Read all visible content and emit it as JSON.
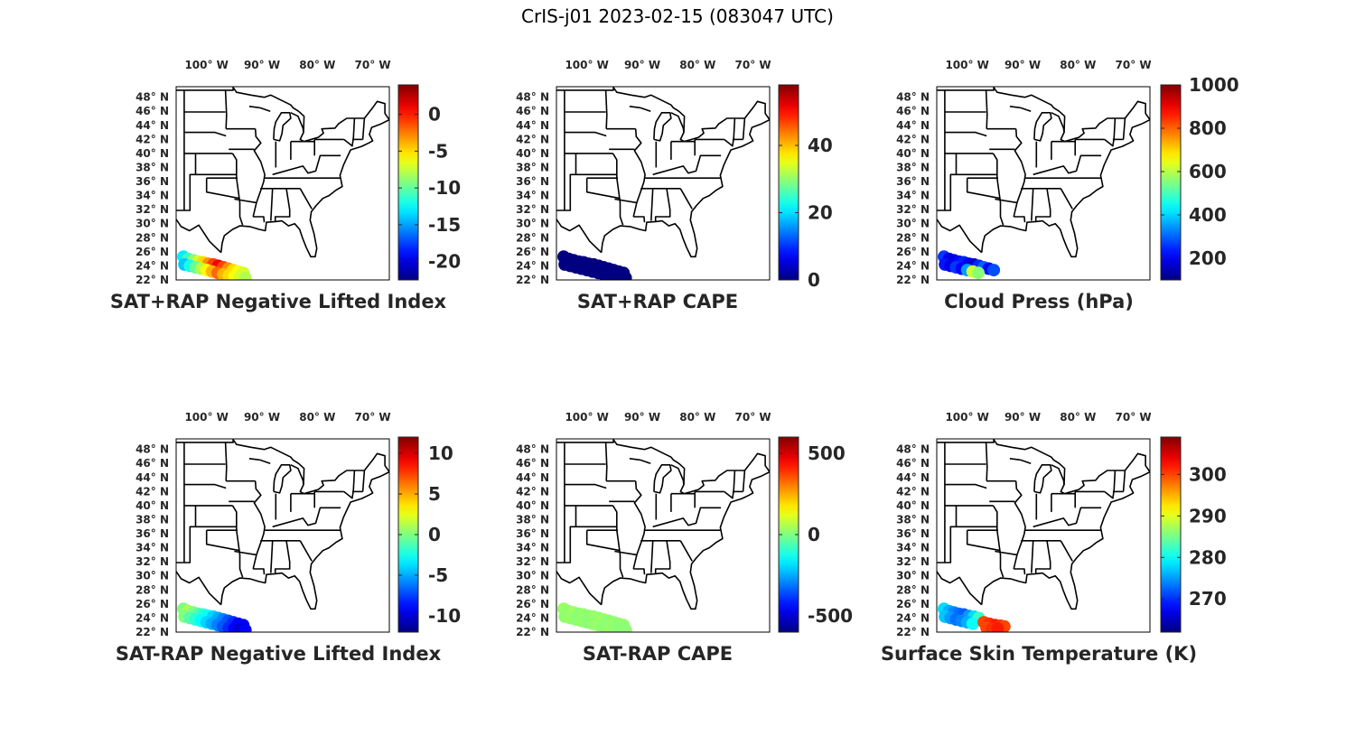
{
  "figure": {
    "title": "CrIS-j01 2023-02-15 (083047 UTC)"
  },
  "colors": {
    "map_lines": "#000000",
    "frame": "#262626",
    "text": "#262626",
    "colormap": "jet"
  },
  "chart_data": [
    {
      "type": "scatter",
      "title": "SAT+RAP Negative Lifted Index",
      "lon_ticks": [
        "100° W",
        "90° W",
        "80° W",
        "70° W"
      ],
      "lat_ticks": [
        "48° N",
        "46° N",
        "44° N",
        "42° N",
        "40° N",
        "38° N",
        "36° N",
        "34° N",
        "32° N",
        "30° N",
        "28° N",
        "26° N",
        "24° N",
        "22° N"
      ],
      "lon_range": [
        -105.5,
        -67
      ],
      "lat_range": [
        22,
        49.5
      ],
      "colorbar": {
        "range": [
          -22.5,
          4
        ],
        "ticks": [
          0,
          -5,
          -10,
          -15,
          -20
        ]
      },
      "points": [
        [
          -104.2,
          25.3,
          -13
        ],
        [
          -103.3,
          25.0,
          -11
        ],
        [
          -102.4,
          24.8,
          -9
        ],
        [
          -101.5,
          24.6,
          -7
        ],
        [
          -100.6,
          24.5,
          -5
        ],
        [
          -99.7,
          24.3,
          -3
        ],
        [
          -98.8,
          24.2,
          -1
        ],
        [
          -97.9,
          24.0,
          1
        ],
        [
          -97.0,
          23.8,
          -1
        ],
        [
          -96.1,
          23.6,
          -3
        ],
        [
          -95.2,
          23.4,
          -5
        ],
        [
          -94.3,
          23.2,
          -6
        ],
        [
          -93.4,
          23.0,
          -7
        ],
        [
          -104.0,
          24.2,
          -14
        ],
        [
          -103.0,
          24.0,
          -12
        ],
        [
          -102.0,
          23.8,
          -10
        ],
        [
          -101.0,
          23.6,
          -8
        ],
        [
          -100.0,
          23.4,
          -6
        ],
        [
          -99.0,
          23.2,
          -4
        ],
        [
          -98.0,
          23.0,
          -2
        ],
        [
          -97.0,
          22.8,
          -4
        ],
        [
          -96.0,
          22.6,
          -5
        ],
        [
          -95.0,
          22.5,
          -6
        ],
        [
          -94.0,
          22.4,
          -7
        ],
        [
          -93.0,
          22.3,
          -8
        ]
      ]
    },
    {
      "type": "scatter",
      "title": "SAT+RAP CAPE",
      "lon_ticks": [
        "100° W",
        "90° W",
        "80° W",
        "70° W"
      ],
      "lat_ticks": [
        "48° N",
        "46° N",
        "44° N",
        "42° N",
        "40° N",
        "38° N",
        "36° N",
        "34° N",
        "32° N",
        "30° N",
        "28° N",
        "26° N",
        "24° N",
        "22° N"
      ],
      "lon_range": [
        -105.5,
        -67
      ],
      "lat_range": [
        22,
        49.5
      ],
      "colorbar": {
        "range": [
          0,
          58
        ],
        "ticks": [
          40,
          20,
          0
        ]
      },
      "points": [
        [
          -104.2,
          25.3,
          0
        ],
        [
          -103.3,
          25.0,
          0
        ],
        [
          -102.4,
          24.8,
          0
        ],
        [
          -101.5,
          24.6,
          0
        ],
        [
          -100.6,
          24.5,
          0
        ],
        [
          -99.7,
          24.3,
          0
        ],
        [
          -98.8,
          24.2,
          0
        ],
        [
          -97.9,
          24.0,
          0
        ],
        [
          -97.0,
          23.8,
          0
        ],
        [
          -96.1,
          23.6,
          0
        ],
        [
          -95.2,
          23.4,
          0
        ],
        [
          -94.3,
          23.2,
          0
        ],
        [
          -93.4,
          23.0,
          0
        ],
        [
          -104.0,
          24.2,
          0
        ],
        [
          -103.0,
          24.0,
          0
        ],
        [
          -102.0,
          23.8,
          0
        ],
        [
          -101.0,
          23.6,
          0
        ],
        [
          -100.0,
          23.4,
          0
        ],
        [
          -99.0,
          23.2,
          0
        ],
        [
          -98.0,
          23.0,
          0
        ],
        [
          -97.0,
          22.8,
          0
        ],
        [
          -96.0,
          22.6,
          0
        ],
        [
          -95.0,
          22.5,
          0
        ],
        [
          -94.0,
          22.4,
          0
        ],
        [
          -93.0,
          22.3,
          0
        ]
      ]
    },
    {
      "type": "scatter",
      "title": "Cloud Press (hPa)",
      "lon_ticks": [
        "100° W",
        "90° W",
        "80° W",
        "70° W"
      ],
      "lat_ticks": [
        "48° N",
        "46° N",
        "44° N",
        "42° N",
        "40° N",
        "38° N",
        "36° N",
        "34° N",
        "32° N",
        "30° N",
        "28° N",
        "26° N",
        "24° N",
        "22° N"
      ],
      "lon_range": [
        -105.5,
        -67
      ],
      "lat_range": [
        22,
        49.5
      ],
      "colorbar": {
        "range": [
          100,
          1000
        ],
        "ticks": [
          1000,
          800,
          600,
          400,
          200
        ]
      },
      "points": [
        [
          -104.2,
          25.3,
          260
        ],
        [
          -103.3,
          25.0,
          200
        ],
        [
          -102.4,
          24.8,
          180
        ],
        [
          -101.5,
          24.6,
          220
        ],
        [
          -100.6,
          24.5,
          240
        ],
        [
          -99.7,
          24.3,
          200
        ],
        [
          -98.8,
          24.2,
          160
        ],
        [
          -97.9,
          24.0,
          250
        ],
        [
          -97.0,
          23.8,
          300
        ],
        [
          -96.1,
          23.6,
          220
        ],
        [
          -95.2,
          23.4,
          280
        ],
        [
          -104.0,
          24.2,
          230
        ],
        [
          -103.0,
          24.0,
          190
        ],
        [
          -102.0,
          23.8,
          260
        ],
        [
          -101.0,
          23.6,
          210
        ],
        [
          -100.0,
          23.4,
          350
        ],
        [
          -99.0,
          23.2,
          620
        ],
        [
          -98.0,
          23.0,
          560
        ]
      ]
    },
    {
      "type": "scatter",
      "title": "SAT-RAP Negative Lifted Index",
      "lon_ticks": [
        "100° W",
        "90° W",
        "80° W",
        "70° W"
      ],
      "lat_ticks": [
        "48° N",
        "46° N",
        "44° N",
        "42° N",
        "40° N",
        "38° N",
        "36° N",
        "34° N",
        "32° N",
        "30° N",
        "28° N",
        "26° N",
        "24° N",
        "22° N"
      ],
      "lon_range": [
        -105.5,
        -67
      ],
      "lat_range": [
        22,
        49.5
      ],
      "colorbar": {
        "range": [
          -12,
          12
        ],
        "ticks": [
          10,
          5,
          0,
          -5,
          -10
        ]
      },
      "points": [
        [
          -104.2,
          25.3,
          0
        ],
        [
          -103.3,
          25.0,
          1
        ],
        [
          -102.4,
          24.8,
          0
        ],
        [
          -101.5,
          24.6,
          -1
        ],
        [
          -100.6,
          24.5,
          -2
        ],
        [
          -99.7,
          24.3,
          -3
        ],
        [
          -98.8,
          24.2,
          -4
        ],
        [
          -97.9,
          24.0,
          -5
        ],
        [
          -97.0,
          23.8,
          -6
        ],
        [
          -96.1,
          23.6,
          -7
        ],
        [
          -95.2,
          23.4,
          -8
        ],
        [
          -94.3,
          23.2,
          -9
        ],
        [
          -93.4,
          23.0,
          -9
        ],
        [
          -104.0,
          24.2,
          0
        ],
        [
          -103.0,
          24.0,
          -1
        ],
        [
          -102.0,
          23.8,
          -2
        ],
        [
          -101.0,
          23.6,
          -3
        ],
        [
          -100.0,
          23.4,
          -4
        ],
        [
          -99.0,
          23.2,
          -5
        ],
        [
          -98.0,
          23.0,
          -6
        ],
        [
          -97.0,
          22.8,
          -7
        ],
        [
          -96.0,
          22.6,
          -8
        ],
        [
          -95.0,
          22.5,
          -9
        ],
        [
          -94.0,
          22.4,
          -10
        ],
        [
          -93.0,
          22.3,
          -9
        ]
      ]
    },
    {
      "type": "scatter",
      "title": "SAT-RAP CAPE",
      "lon_ticks": [
        "100° W",
        "90° W",
        "80° W",
        "70° W"
      ],
      "lat_ticks": [
        "48° N",
        "46° N",
        "44° N",
        "42° N",
        "40° N",
        "38° N",
        "36° N",
        "34° N",
        "32° N",
        "30° N",
        "28° N",
        "26° N",
        "24° N",
        "22° N"
      ],
      "lon_range": [
        -105.5,
        -67
      ],
      "lat_range": [
        22,
        49.5
      ],
      "colorbar": {
        "range": [
          -600,
          600
        ],
        "ticks": [
          500,
          0,
          -500
        ]
      },
      "points": [
        [
          -104.2,
          25.3,
          30
        ],
        [
          -103.3,
          25.0,
          20
        ],
        [
          -102.4,
          24.8,
          40
        ],
        [
          -101.5,
          24.6,
          10
        ],
        [
          -100.6,
          24.5,
          25
        ],
        [
          -99.7,
          24.3,
          15
        ],
        [
          -98.8,
          24.2,
          30
        ],
        [
          -97.9,
          24.0,
          20
        ],
        [
          -97.0,
          23.8,
          35
        ],
        [
          -96.1,
          23.6,
          10
        ],
        [
          -95.2,
          23.4,
          25
        ],
        [
          -94.3,
          23.2,
          15
        ],
        [
          -93.4,
          23.0,
          20
        ],
        [
          -104.0,
          24.2,
          20
        ],
        [
          -103.0,
          24.0,
          30
        ],
        [
          -102.0,
          23.8,
          15
        ],
        [
          -101.0,
          23.6,
          25
        ],
        [
          -100.0,
          23.4,
          10
        ],
        [
          -99.0,
          23.2,
          20
        ],
        [
          -98.0,
          23.0,
          30
        ],
        [
          -97.0,
          22.8,
          15
        ],
        [
          -96.0,
          22.6,
          25
        ],
        [
          -95.0,
          22.5,
          20
        ],
        [
          -94.0,
          22.4,
          10
        ],
        [
          -93.0,
          22.3,
          15
        ]
      ]
    },
    {
      "type": "scatter",
      "title": "Surface Skin Temperature (K)",
      "lon_ticks": [
        "100° W",
        "90° W",
        "80° W",
        "70° W"
      ],
      "lat_ticks": [
        "48° N",
        "46° N",
        "44° N",
        "42° N",
        "40° N",
        "38° N",
        "36° N",
        "34° N",
        "32° N",
        "30° N",
        "28° N",
        "26° N",
        "24° N",
        "22° N"
      ],
      "lon_range": [
        -105.5,
        -67
      ],
      "lat_range": [
        22,
        49.5
      ],
      "colorbar": {
        "range": [
          262,
          309
        ],
        "ticks": [
          300,
          290,
          280,
          270
        ]
      },
      "points": [
        [
          -104.2,
          25.3,
          278
        ],
        [
          -103.3,
          25.0,
          276
        ],
        [
          -102.4,
          24.8,
          274
        ],
        [
          -101.5,
          24.6,
          273
        ],
        [
          -100.6,
          24.5,
          272
        ],
        [
          -99.7,
          24.3,
          275
        ],
        [
          -98.8,
          24.2,
          278
        ],
        [
          -97.9,
          24.0,
          282
        ],
        [
          -104.0,
          24.2,
          277
        ],
        [
          -103.0,
          24.0,
          275
        ],
        [
          -102.0,
          23.8,
          273
        ],
        [
          -101.0,
          23.6,
          274
        ],
        [
          -100.0,
          23.4,
          276
        ],
        [
          -99.0,
          23.2,
          280
        ],
        [
          -97.0,
          23.4,
          300
        ],
        [
          -96.0,
          23.2,
          301
        ],
        [
          -95.0,
          23.0,
          302
        ],
        [
          -94.0,
          22.9,
          301
        ],
        [
          -93.3,
          22.8,
          300
        ],
        [
          -96.5,
          22.6,
          300
        ],
        [
          -95.5,
          22.5,
          301
        ],
        [
          -94.5,
          22.5,
          302
        ]
      ]
    }
  ]
}
